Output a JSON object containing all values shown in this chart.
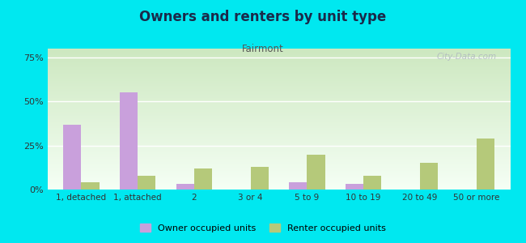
{
  "title": "Owners and renters by unit type",
  "subtitle": "Fairmont",
  "categories": [
    "1, detached",
    "1, attached",
    "2",
    "3 or 4",
    "5 to 9",
    "10 to 19",
    "20 to 49",
    "50 or more"
  ],
  "owner_values": [
    37,
    55,
    3,
    0,
    4,
    3,
    0,
    0
  ],
  "renter_values": [
    4,
    8,
    12,
    13,
    20,
    8,
    15,
    29
  ],
  "owner_color": "#c9a0dc",
  "renter_color": "#b5c97a",
  "background_color": "#00e8f0",
  "gradient_top": "#cde8c0",
  "gradient_bottom": "#f5fff5",
  "ylim": [
    0,
    80
  ],
  "yticks": [
    0,
    25,
    50,
    75
  ],
  "ytick_labels": [
    "0%",
    "25%",
    "50%",
    "75%"
  ],
  "bar_width": 0.32,
  "watermark": "City-Data.com",
  "title_color": "#1a2a4a",
  "subtitle_color": "#555555",
  "legend_owner": "Owner occupied units",
  "legend_renter": "Renter occupied units"
}
